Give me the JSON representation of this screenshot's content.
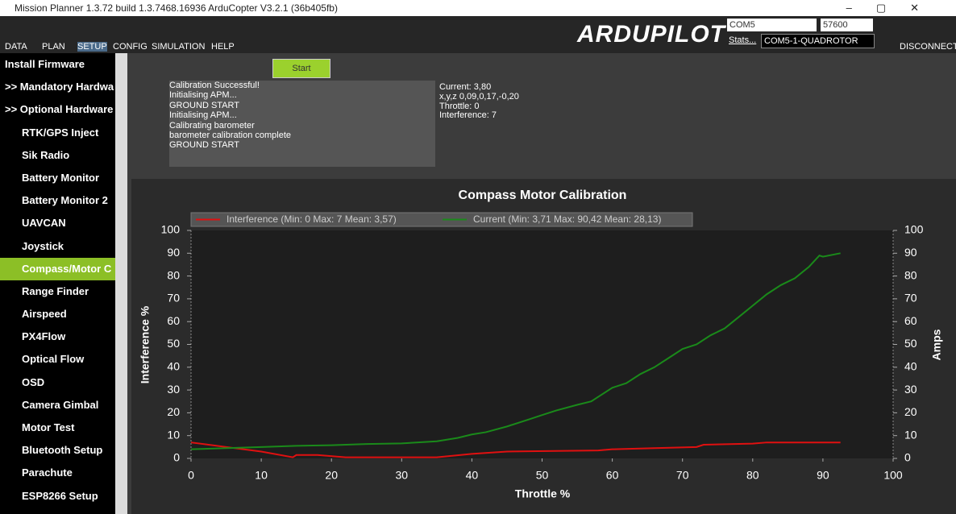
{
  "window": {
    "title": "Mission Planner 1.3.72 build 1.3.7468.16936 ArduCopter V3.2.1 (36b405fb)"
  },
  "toolbar": {
    "items": [
      "DATA",
      "PLAN",
      "SETUP",
      "CONFIG",
      "SIMULATION",
      "HELP"
    ],
    "logo": "ARDUPILOT",
    "port": "COM5",
    "baud": "57600",
    "stats": "Stats...",
    "vehicle": "COM5-1-QUADROTOR",
    "disconnect": "DISCONNECT"
  },
  "sidebar": {
    "items": [
      "Install Firmware",
      ">> Mandatory Hardwa",
      ">> Optional Hardware",
      "RTK/GPS Inject",
      "Sik Radio",
      "Battery Monitor",
      "Battery Monitor 2",
      "UAVCAN",
      "Joystick",
      "Compass/Motor C",
      "Range Finder",
      "Airspeed",
      "PX4Flow",
      "Optical Flow",
      "OSD",
      "Camera Gimbal",
      "Motor Test",
      "Bluetooth Setup",
      "Parachute",
      "ESP8266 Setup"
    ]
  },
  "panel": {
    "start": "Start",
    "log": [
      "Calibration Successful!",
      "Initialising APM...",
      "GROUND START",
      "Initialising APM...",
      "Calibrating barometer",
      "barometer calibration complete",
      "GROUND START"
    ],
    "status": [
      "Current: 3,80",
      "x,y,z  0,09,0,17,-0,20",
      "Throttle: 0",
      "Interference: 7"
    ]
  },
  "chart_data": {
    "type": "line",
    "title": "Compass Motor Calibration",
    "x_label": "Throttle %",
    "y_label": "Interference %",
    "y2_label": "Amps",
    "xlim": [
      0,
      100
    ],
    "xticks": [
      0,
      10,
      20,
      30,
      40,
      50,
      60,
      70,
      80,
      90,
      100
    ],
    "ylim": [
      0,
      100
    ],
    "yticks": [
      0,
      10,
      20,
      30,
      40,
      50,
      60,
      70,
      80,
      90,
      100
    ],
    "y2lim": [
      0,
      100
    ],
    "y2ticks": [
      0,
      10,
      20,
      30,
      40,
      50,
      60,
      70,
      80,
      90,
      100
    ],
    "series": [
      {
        "name": "Interference (Min: 0 Max: 7 Mean: 3,57)",
        "color": "#e01010",
        "x": [
          0,
          5,
          10,
          14.5,
          15,
          18,
          22,
          30,
          35,
          40,
          45,
          58,
          60,
          66,
          72,
          73,
          80,
          82,
          92.5
        ],
        "values": [
          7,
          5,
          3,
          0.5,
          1.5,
          1.5,
          0.5,
          0.5,
          0.5,
          2,
          3,
          3.5,
          4,
          4.5,
          5,
          6,
          6.5,
          7,
          7
        ]
      },
      {
        "name": "Current (Min: 3,71 Max: 90,42 Mean: 28,13)",
        "color": "#1a8a1a",
        "axis": "y2",
        "x": [
          0,
          5,
          10,
          15,
          20,
          25,
          30,
          35,
          38,
          40,
          42,
          45,
          48,
          50,
          52,
          55,
          57,
          60,
          62,
          64,
          66,
          68,
          70,
          72,
          74,
          76,
          78,
          80,
          82,
          84,
          86,
          88,
          89.5,
          90,
          92.5
        ],
        "values": [
          4,
          4.5,
          5,
          5.5,
          5.8,
          6.3,
          6.6,
          7.5,
          9,
          10.5,
          11.5,
          14,
          17,
          19,
          21,
          23.5,
          25,
          31,
          33,
          37,
          40,
          44,
          48,
          50,
          54,
          57,
          62,
          67,
          72,
          76,
          79,
          84,
          89,
          88.5,
          90
        ]
      }
    ]
  }
}
